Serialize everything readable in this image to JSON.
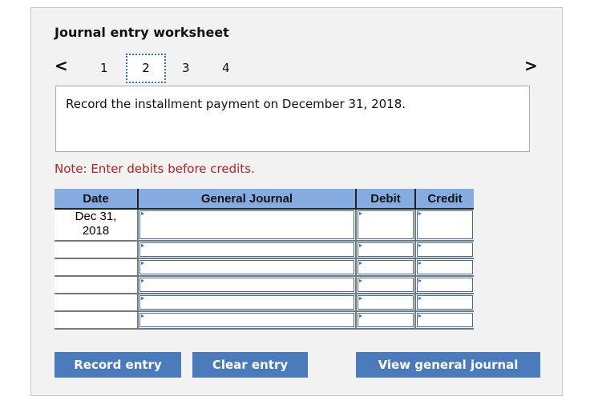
{
  "title": "Journal entry worksheet",
  "nav": {
    "prev": "<",
    "next": ">",
    "pages": [
      "1",
      "2",
      "3",
      "4"
    ],
    "active": "2"
  },
  "prompt": "Record the installment payment on December 31, 2018.",
  "note": "Note: Enter debits before credits.",
  "table": {
    "headers": [
      "Date",
      "General Journal",
      "Debit",
      "Credit"
    ],
    "rows": [
      {
        "date": "Dec 31,\n2018"
      },
      {
        "date": ""
      },
      {
        "date": ""
      },
      {
        "date": ""
      },
      {
        "date": ""
      },
      {
        "date": ""
      }
    ]
  },
  "buttons": {
    "record": "Record entry",
    "clear": "Clear entry",
    "view": "View general journal"
  },
  "colors": {
    "header": "#84ace0",
    "button": "#4a7ab9",
    "note": "#b22222"
  }
}
